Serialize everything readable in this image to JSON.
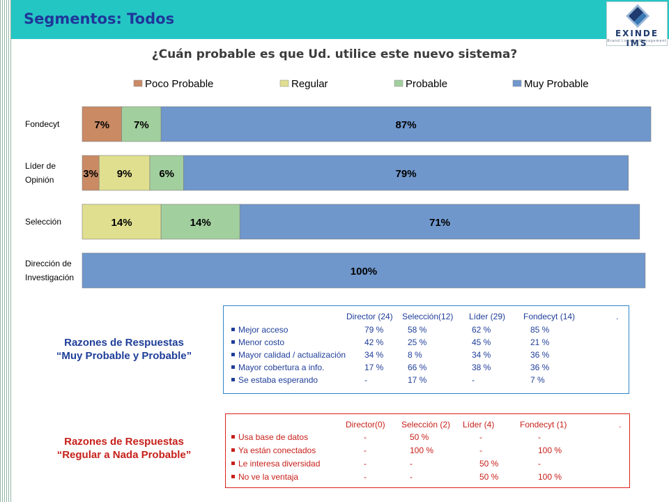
{
  "header": {
    "title": "Segmentos: Todos"
  },
  "logo": {
    "text": "EXINDE IMS",
    "subtitle": "Brand Loyalty Management",
    "colors": [
      "#1f3a6e",
      "#3a78b5",
      "#9ab8d8"
    ]
  },
  "colors": {
    "header_bg": "#24c6c4",
    "title_color": "#1f3699"
  },
  "chart_data": {
    "type": "bar",
    "orientation": "horizontal",
    "stacked": true,
    "title": "¿Cuán probable es que Ud. utilice este nuevo sistema?",
    "legend_position": "top",
    "categories": [
      "Fondecyt",
      "Líder de Opinión",
      "Selección",
      "Dirección de Investigación"
    ],
    "category_lines": [
      [
        "Fondecyt"
      ],
      [
        "Líder de",
        "Opinión"
      ],
      [
        "Selección"
      ],
      [
        "Dirección de",
        "Investigación"
      ]
    ],
    "series": [
      {
        "name": "Poco Probable",
        "color": "#c98a64",
        "values": [
          7,
          3,
          0,
          0
        ]
      },
      {
        "name": "Regular",
        "color": "#e0df8f",
        "values": [
          0,
          9,
          14,
          0
        ]
      },
      {
        "name": "Probable",
        "color": "#a2cf9e",
        "values": [
          7,
          6,
          14,
          0
        ]
      },
      {
        "name": "Muy Probable",
        "color": "#6f97cc",
        "values": [
          87,
          79,
          71,
          100
        ]
      }
    ],
    "xlim": [
      0,
      101
    ]
  },
  "reasons_positive": {
    "title_line1": "Razones de Respuestas",
    "title_line2": "“Muy Probable y Probable”",
    "header": [
      "Director (24)",
      "Selección(12)",
      "Líder (29)",
      "Fondecyt (14)",
      "."
    ],
    "rows": [
      {
        "label": "Mejor acceso",
        "values": [
          "79 %",
          "58 %",
          "62 %",
          "85 %"
        ]
      },
      {
        "label": "Menor costo",
        "values": [
          "42 %",
          "25 %",
          "45 %",
          "21 %"
        ]
      },
      {
        "label": "Mayor calidad / actualización",
        "values": [
          "34 %",
          "8 %",
          "34 %",
          "36 %"
        ]
      },
      {
        "label": "Mayor cobertura a info.",
        "values": [
          "17 %",
          "66 %",
          "38 %",
          "36 %"
        ]
      },
      {
        "label": "Se estaba esperando",
        "values": [
          "-",
          "17 %",
          "-",
          "7 %"
        ]
      }
    ]
  },
  "reasons_negative": {
    "title_line1": "Razones de Respuestas",
    "title_line2": "“Regular a Nada Probable”",
    "header": [
      "Director(0)",
      "Selección (2)",
      "Líder (4)",
      "Fondecyt (1)",
      "."
    ],
    "rows": [
      {
        "label": "Usa base de datos",
        "values": [
          "-",
          "50 %",
          "-",
          "-"
        ]
      },
      {
        "label": "Ya están conectados",
        "values": [
          "-",
          "100 %",
          "-",
          "100 %"
        ]
      },
      {
        "label": "Le interesa diversidad",
        "values": [
          "-",
          "-",
          "50 %",
          "-"
        ]
      },
      {
        "label": "No ve la ventaja",
        "values": [
          "-",
          "-",
          "50 %",
          "100 %"
        ]
      }
    ]
  }
}
